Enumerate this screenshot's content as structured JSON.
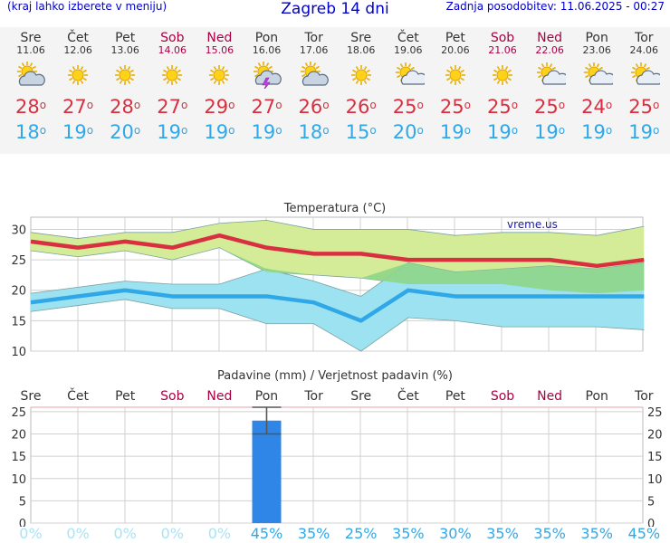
{
  "header": {
    "left_text": "(kraj lahko izberete v meniju)",
    "title": "Zagreb 14 dni",
    "updated": "Zadnja posodobitev: 11.06.2025 - 00:27"
  },
  "days": [
    {
      "name": "Sre",
      "date": "11.06",
      "weekend": false,
      "icon": "partly-cloudy-icon",
      "tmax": "28",
      "tmin": "18"
    },
    {
      "name": "Čet",
      "date": "12.06",
      "weekend": false,
      "icon": "sun-icon",
      "tmax": "27",
      "tmin": "19"
    },
    {
      "name": "Pet",
      "date": "13.06",
      "weekend": false,
      "icon": "sun-icon",
      "tmax": "28",
      "tmin": "20"
    },
    {
      "name": "Sob",
      "date": "14.06",
      "weekend": true,
      "icon": "sun-icon",
      "tmax": "27",
      "tmin": "19"
    },
    {
      "name": "Ned",
      "date": "15.06",
      "weekend": true,
      "icon": "sun-icon",
      "tmax": "29",
      "tmin": "19"
    },
    {
      "name": "Pon",
      "date": "16.06",
      "weekend": false,
      "icon": "thunderstorm-icon",
      "tmax": "27",
      "tmin": "19"
    },
    {
      "name": "Tor",
      "date": "17.06",
      "weekend": false,
      "icon": "partly-cloudy-icon",
      "tmax": "26",
      "tmin": "18"
    },
    {
      "name": "Sre",
      "date": "18.06",
      "weekend": false,
      "icon": "sun-icon",
      "tmax": "26",
      "tmin": "15"
    },
    {
      "name": "Čet",
      "date": "19.06",
      "weekend": false,
      "icon": "sun-cloud-icon",
      "tmax": "25",
      "tmin": "20"
    },
    {
      "name": "Pet",
      "date": "20.06",
      "weekend": false,
      "icon": "sun-icon",
      "tmax": "25",
      "tmin": "19"
    },
    {
      "name": "Sob",
      "date": "21.06",
      "weekend": true,
      "icon": "sun-icon",
      "tmax": "25",
      "tmin": "19"
    },
    {
      "name": "Ned",
      "date": "22.06",
      "weekend": true,
      "icon": "sun-cloud-icon",
      "tmax": "25",
      "tmin": "19"
    },
    {
      "name": "Pon",
      "date": "23.06",
      "weekend": false,
      "icon": "sun-cloud-icon",
      "tmax": "24",
      "tmin": "19"
    },
    {
      "name": "Tor",
      "date": "24.06",
      "weekend": false,
      "icon": "sun-cloud-icon",
      "tmax": "25",
      "tmin": "19"
    }
  ],
  "degree_symbol": "o",
  "chart_data": [
    {
      "type": "line",
      "title": "Temperatura (°C)",
      "watermark": "vreme.us",
      "ylim": [
        10,
        32
      ],
      "yticks": [
        10,
        15,
        20,
        25,
        30
      ],
      "grid": true,
      "x": [
        "11.06",
        "12.06",
        "13.06",
        "14.06",
        "15.06",
        "16.06",
        "17.06",
        "18.06",
        "19.06",
        "20.06",
        "21.06",
        "22.06",
        "23.06",
        "24.06"
      ],
      "series": [
        {
          "name": "max",
          "color": "#d83040",
          "values": [
            28,
            27,
            28,
            27,
            29,
            27,
            26,
            26,
            25,
            25,
            25,
            25,
            24,
            25
          ]
        },
        {
          "name": "min",
          "color": "#30a8e8",
          "values": [
            18,
            19,
            20,
            19,
            19,
            19,
            18,
            15,
            20,
            19,
            19,
            19,
            19,
            19
          ]
        }
      ],
      "max_range": {
        "upper": [
          29.5,
          28.5,
          29.5,
          29.5,
          31,
          31.5,
          30,
          30,
          30,
          29,
          29.5,
          29.5,
          29,
          30.5
        ],
        "lower": [
          26.5,
          25.5,
          26.5,
          25,
          27,
          23,
          22.5,
          22,
          21,
          21,
          21,
          20,
          19.5,
          20
        ]
      },
      "min_range": {
        "upper": [
          19.5,
          20.5,
          21.5,
          21,
          21,
          23.5,
          21.5,
          19,
          24.5,
          23,
          23.5,
          24,
          23.5,
          24.5
        ],
        "lower": [
          16.5,
          17.5,
          18.5,
          17,
          17,
          14.5,
          14.5,
          10,
          15.5,
          15,
          14,
          14,
          14,
          13.5
        ]
      },
      "colors": {
        "max_band": "#d4ec98",
        "min_band": "#9ce2f0",
        "overlap": "#8ed688"
      }
    },
    {
      "type": "bar",
      "title": "Padavine (mm) / Verjetnost padavin (%)",
      "ylim": [
        0,
        26
      ],
      "yticks": [
        0,
        5,
        10,
        15,
        20,
        25
      ],
      "grid": true,
      "categories": [
        "Sre",
        "Čet",
        "Pet",
        "Sob",
        "Ned",
        "Pon",
        "Tor",
        "Sre",
        "Čet",
        "Pet",
        "Sob",
        "Ned",
        "Pon",
        "Tor"
      ],
      "weekend": [
        false,
        false,
        false,
        true,
        true,
        false,
        false,
        false,
        false,
        false,
        true,
        true,
        false,
        false
      ],
      "values": [
        0,
        0,
        0,
        0,
        0,
        23,
        0,
        0,
        0,
        0,
        0,
        0,
        0,
        0
      ],
      "error_low": [
        0,
        0,
        0,
        0,
        0,
        20,
        0,
        0,
        0,
        0,
        0,
        0,
        0,
        0
      ],
      "error_high": [
        0,
        0,
        0,
        0,
        0,
        26,
        0,
        0,
        0,
        0,
        0,
        0,
        0,
        0
      ],
      "probability": [
        "0%",
        "0%",
        "0%",
        "0%",
        "0%",
        "45%",
        "35%",
        "25%",
        "35%",
        "30%",
        "35%",
        "35%",
        "35%",
        "45%"
      ],
      "colors": {
        "bar": "#2f86e6",
        "prob_zero": "#a8e4f6",
        "prob": "#30a8e8"
      }
    }
  ]
}
